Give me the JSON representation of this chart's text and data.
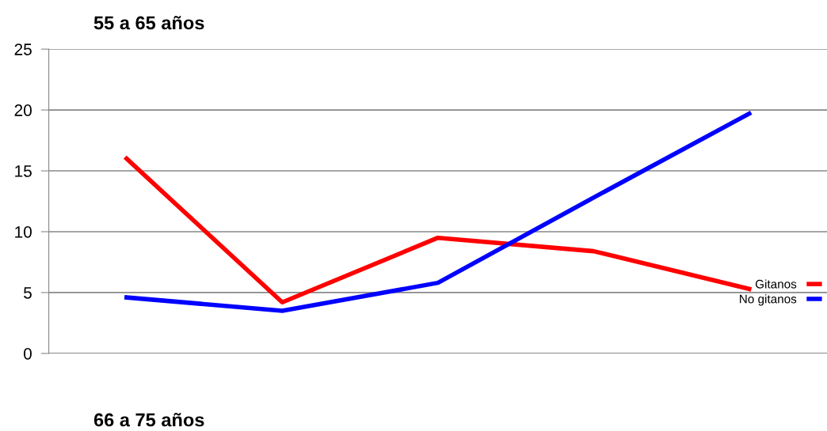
{
  "chart_data": {
    "type": "line",
    "title": "55 a 65 años",
    "categories": [
      null,
      null,
      null,
      null,
      null
    ],
    "series": [
      {
        "name": "Gitanos",
        "color": "#ff0000",
        "values": [
          16,
          4.2,
          9.5,
          8.4,
          5.3
        ]
      },
      {
        "name": "No gitanos",
        "color": "#0000ff",
        "values": [
          4.6,
          3.5,
          5.8,
          12.8,
          19.7
        ]
      }
    ],
    "ylim": [
      0,
      25
    ],
    "yticks": [
      0,
      5,
      10,
      15,
      20,
      25
    ],
    "grid": "y",
    "legend": "right",
    "marker": "none",
    "line_style": "solid",
    "annotations": [
      "66 a 75 años"
    ]
  }
}
